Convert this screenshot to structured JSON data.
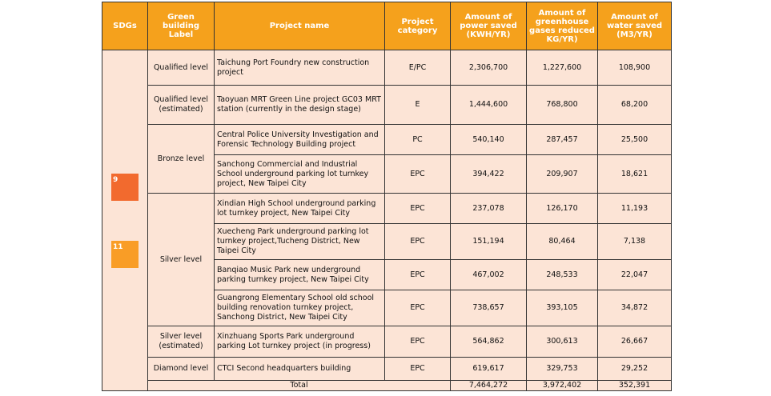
{
  "table": {
    "headers": [
      "SDGs",
      "Green building Label",
      "Project name",
      "Project category",
      "Amount of power saved (KWH/YR)",
      "Amount of greenhouse gases reduced KG/YR)",
      "Amount of water saved (M3/YR)"
    ],
    "sdg_icons": [
      "9",
      "11"
    ],
    "groups": [
      {
        "label": "Qualified level",
        "rows": [
          {
            "project": "Taichung Port Foundry new construction project",
            "category": "E/PC",
            "power": "2,306,700",
            "ghg": "1,227,600",
            "water": "108,900"
          }
        ]
      },
      {
        "label": "Qualified level (estimated)",
        "rows": [
          {
            "project": "Taoyuan MRT Green Line project GC03 MRT station (currently in the design stage)",
            "category": "E",
            "power": "1,444,600",
            "ghg": "768,800",
            "water": "68,200"
          }
        ]
      },
      {
        "label": "Bronze level",
        "rows": [
          {
            "project": "Central Police University Investigation and Forensic Technology Building project",
            "category": "PC",
            "power": "540,140",
            "ghg": "287,457",
            "water": "25,500"
          },
          {
            "project": "Sanchong Commercial and Industrial School underground parking lot turnkey project, New Taipei City",
            "category": "EPC",
            "power": "394,422",
            "ghg": "209,907",
            "water": "18,621"
          }
        ]
      },
      {
        "label": "Silver level",
        "rows": [
          {
            "project": "Xindian High School underground parking lot turnkey project, New Taipei City",
            "category": "EPC",
            "power": "237,078",
            "ghg": "126,170",
            "water": "11,193"
          },
          {
            "project": "Xuecheng Park underground parking lot turnkey project,Tucheng District, New Taipei City",
            "category": "EPC",
            "power": "151,194",
            "ghg": "80,464",
            "water": "7,138"
          },
          {
            "project": "Banqiao Music Park new underground parking turnkey project, New Taipei City",
            "category": "EPC",
            "power": "467,002",
            "ghg": "248,533",
            "water": "22,047"
          },
          {
            "project": "Guangrong Elementary School old school building renovation turnkey project, Sanchong District, New Taipei City",
            "category": "EPC",
            "power": "738,657",
            "ghg": "393,105",
            "water": "34,872"
          }
        ]
      },
      {
        "label": "Silver level (estimated)",
        "rows": [
          {
            "project": "Xinzhuang Sports Park underground parking Lot turnkey project (in progress)",
            "category": "EPC",
            "power": "564,862",
            "ghg": "300,613",
            "water": "26,667"
          }
        ]
      },
      {
        "label": "Diamond level",
        "rows": [
          {
            "project": "CTCI Second headquarters building",
            "category": "EPC",
            "power": "619,617",
            "ghg": "329,753",
            "water": "29,252"
          }
        ]
      }
    ],
    "total": {
      "label": "Total",
      "power": "7,464,272",
      "ghg": "3,972,402",
      "water": "352,391"
    }
  }
}
